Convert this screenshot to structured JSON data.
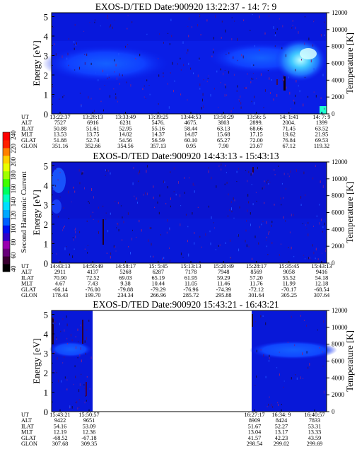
{
  "colorbar": {
    "label": "Second Harmonic Current",
    "ticks": [
      "40",
      "60",
      "80",
      "100",
      "120",
      "140",
      "160",
      "180",
      "200",
      "220",
      "240"
    ],
    "colors": [
      "#000000",
      "#3a0030",
      "#6a007a",
      "#9a00b0",
      "#3000c8",
      "#0010f0",
      "#0060ff",
      "#00a8ff",
      "#00e0ff",
      "#00ffc0",
      "#00ff60",
      "#40ff00",
      "#a0ff00",
      "#e8ff00",
      "#ffd000",
      "#ff8000",
      "#ff2000",
      "#ff0000"
    ]
  },
  "chart_data": [
    {
      "type": "heatmap",
      "title": "EXOS-D/TED   Date:900920  13:22:37 - 14: 7: 9",
      "ylabel": "Energy [eV]",
      "y2label": "Temperature [K]",
      "yticks": [
        "0",
        "1",
        "2",
        "3",
        "4",
        "5"
      ],
      "y2ticks": [
        "0",
        "2000",
        "4000",
        "6000",
        "8000",
        "10000",
        "12000"
      ],
      "ylim": [
        0,
        5.2
      ],
      "y2lim": [
        0,
        12000
      ],
      "orbit_table": {
        "row_labels": [
          "UT",
          "ALT",
          "ILAT",
          "MLT",
          "GLAT",
          "GLON"
        ],
        "columns": [
          [
            "13:22:37",
            "7527",
            "50.88",
            "13.53",
            "51.88",
            "351.16"
          ],
          [
            "13:28:13",
            "6916",
            "51.61",
            "13.75",
            "52.74",
            "352.66"
          ],
          [
            "13:33:49",
            "6231",
            "52.95",
            "14.02",
            "54.56",
            "354.56"
          ],
          [
            "13:39:25",
            "5476.",
            "55.16",
            "14.37",
            "56.59",
            "357.13"
          ],
          [
            "13:44:53",
            "4675.",
            "58.44",
            "14.87",
            "60.10",
            "0.95"
          ],
          [
            "13:50:29",
            "3803",
            "63.13",
            "15.68",
            "65.27",
            "7.90"
          ],
          [
            "13:56: 5",
            "2899.",
            "68.66",
            "17.15",
            "72.00",
            "23.67"
          ],
          [
            "14: 1:41",
            "2004.",
            "71.45",
            "19.62",
            "76.84",
            "67.12"
          ],
          [
            "14: 7: 9",
            "1399",
            "63.52",
            "21.95",
            "69.53",
            "119.32"
          ]
        ]
      }
    },
    {
      "type": "heatmap",
      "title": "EXOS-D/TED   Date:900920  14:43:13 - 15:43:13",
      "ylabel": "Energy [eV]",
      "y2label": "Temperature [K]",
      "yticks": [
        "0",
        "1",
        "2",
        "3",
        "4",
        "5"
      ],
      "y2ticks": [
        "0",
        "2000",
        "4000",
        "6000",
        "8000",
        "10000",
        "12000"
      ],
      "ylim": [
        0,
        5.2
      ],
      "y2lim": [
        0,
        12000
      ],
      "orbit_table": {
        "row_labels": [
          "UT",
          "ALT",
          "ILAT",
          "MLT",
          "GLAT",
          "GLON"
        ],
        "columns": [
          [
            "14:43:13",
            "2911",
            "70.90",
            "4.67",
            "-66.14",
            "178.43"
          ],
          [
            "14:50:49",
            "4137",
            "72.52",
            "7.43",
            "-76.00",
            "199.70"
          ],
          [
            "14:58:17",
            "5268",
            "69.03",
            "9.38",
            "-79.88",
            "234.34"
          ],
          [
            "15: 5:45",
            "6287",
            "65.19",
            "10.44",
            "-79.29",
            "266.96"
          ],
          [
            "15:13:13",
            "7178",
            "61.95",
            "11.05",
            "-76.96",
            "285.72"
          ],
          [
            "15:20:49",
            "7948",
            "59.29",
            "11.46",
            "-74.39",
            "295.88"
          ],
          [
            "15:28:17",
            "8569",
            "57.20",
            "11.76",
            "-72.12",
            "301.64"
          ],
          [
            "15:35:45",
            "9058",
            "55.52",
            "11.99",
            "-70.17",
            "305.25"
          ],
          [
            "15:43:13",
            "9416",
            "54.18",
            "12.18",
            "-68.54",
            "307.64"
          ]
        ]
      }
    },
    {
      "type": "heatmap",
      "title": "EXOS-D/TED   Date:900920  15:43:21 - 16:43:21",
      "ylabel": "Energy [eV]",
      "y2label": "Temperature [K]",
      "yticks": [
        "0",
        "1",
        "2",
        "3",
        "4",
        "5"
      ],
      "y2ticks": [
        "0",
        "2000",
        "4000",
        "6000",
        "8000",
        "10000",
        "12000"
      ],
      "ylim": [
        0,
        5.2
      ],
      "y2lim": [
        0,
        12000
      ],
      "orbit_table": {
        "row_labels": [
          "UT",
          "ALT",
          "ILAT",
          "MLT",
          "GLAT",
          "GLON"
        ],
        "left_columns": [
          [
            "15:43:21",
            "9422",
            "54.16",
            "12.19",
            "-68.52",
            "307.68"
          ],
          [
            "15:50:57",
            "9651",
            "53.09",
            "12.36",
            "-67.18",
            "309.35"
          ]
        ],
        "right_columns": [
          [
            "16:27:17",
            "8909",
            "51.67",
            "13.04",
            "41.57",
            "298.54"
          ],
          [
            "16:34: 9",
            "8424",
            "52.27",
            "13.17",
            "42.23",
            "299.02"
          ],
          [
            "16:40:57",
            "7833",
            "53.31",
            "13.33",
            "43.59",
            "299.69"
          ]
        ]
      }
    }
  ]
}
